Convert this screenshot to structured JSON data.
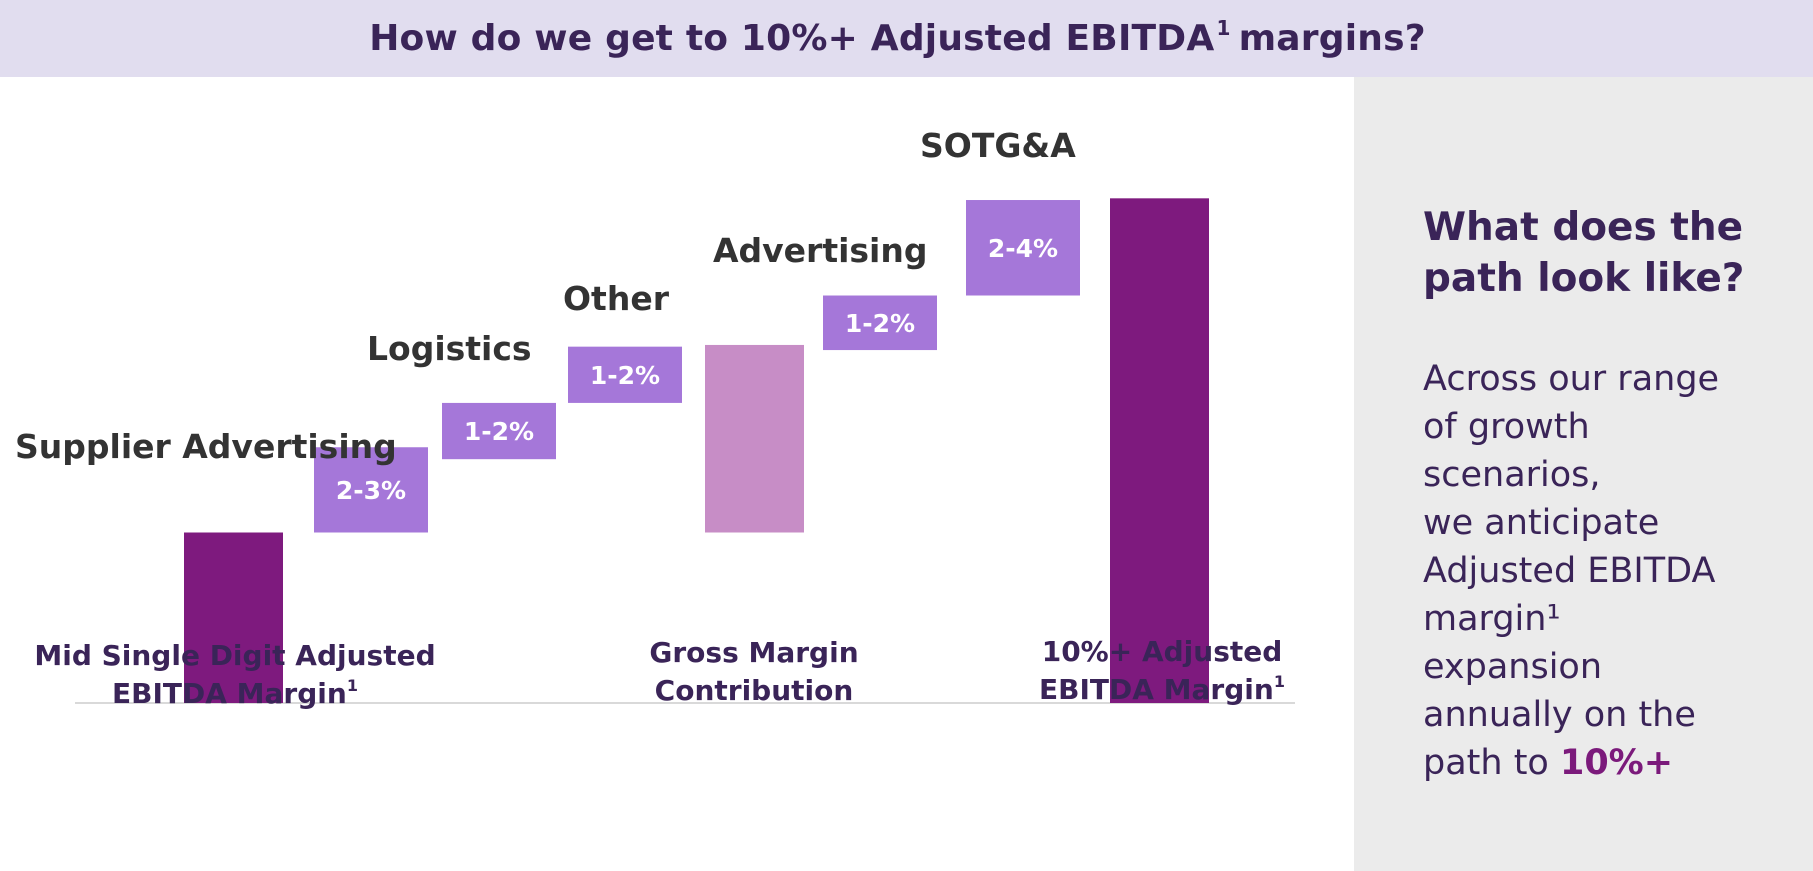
{
  "header": {
    "title": "How do we get to 10%+ Adjusted EBITDA",
    "title_sup": "1",
    "title_end": "margins?"
  },
  "sidebar": {
    "heading": "What does the path look like?",
    "body_lines": [
      "Across our range",
      "of growth",
      "scenarios,",
      "we anticipate",
      "Adjusted EBITDA",
      "margin¹",
      "expansion",
      "annually on the"
    ],
    "body_last_prefix": "path to ",
    "body_highlight": "10%+"
  },
  "chart_data": {
    "type": "bar",
    "subtype": "waterfall",
    "grid": false,
    "axes_visible": false,
    "y_ticks": "none",
    "units": "% Adjusted EBITDA margin",
    "ylim": [
      0,
      12
    ],
    "categories": [
      "Mid Single Digit Adjusted EBITDA Margin¹",
      "Supplier Advertising",
      "Logistics",
      "Other",
      "Gross Margin Contribution",
      "Advertising",
      "SOTG&A",
      "10%+ Adjusted EBITDA Margin¹"
    ],
    "steps": [
      {
        "label": "Mid Single Digit Adjusted EBITDA Margin",
        "sup": "1",
        "kind": "total",
        "base": 0,
        "value": 5.0,
        "color": "#7e1a7e",
        "category_label": true
      },
      {
        "label": "Supplier Advertising",
        "kind": "increment",
        "value_label": "2-3%",
        "base": 5.0,
        "value": 2.5,
        "color": "#a577d9"
      },
      {
        "label": "Logistics",
        "kind": "increment",
        "value_label": "1-2%",
        "base": 7.15,
        "value": 1.65,
        "color": "#a577d9"
      },
      {
        "label": "Other",
        "kind": "increment",
        "value_label": "1-2%",
        "base": 8.8,
        "value": 1.65,
        "color": "#a577d9"
      },
      {
        "label": "Gross Margin Contribution",
        "kind": "subtotal",
        "base": 5.0,
        "value": 5.5,
        "color": "#c78dc6",
        "category_label": true
      },
      {
        "label": "Advertising",
        "kind": "increment",
        "value_label": "1-2%",
        "base": 10.35,
        "value": 1.6,
        "color": "#a577d9"
      },
      {
        "label": "SOTG&A",
        "kind": "increment",
        "value_label": "2-4%",
        "base": 11.95,
        "value": 2.8,
        "color": "#a577d9"
      },
      {
        "label": "10%+ Adjusted EBITDA Margin",
        "sup": "1",
        "kind": "total",
        "base": 0,
        "value": 14.8,
        "color": "#7e1a7e",
        "category_label": true
      }
    ],
    "axis_color": "#d9d9d9"
  }
}
